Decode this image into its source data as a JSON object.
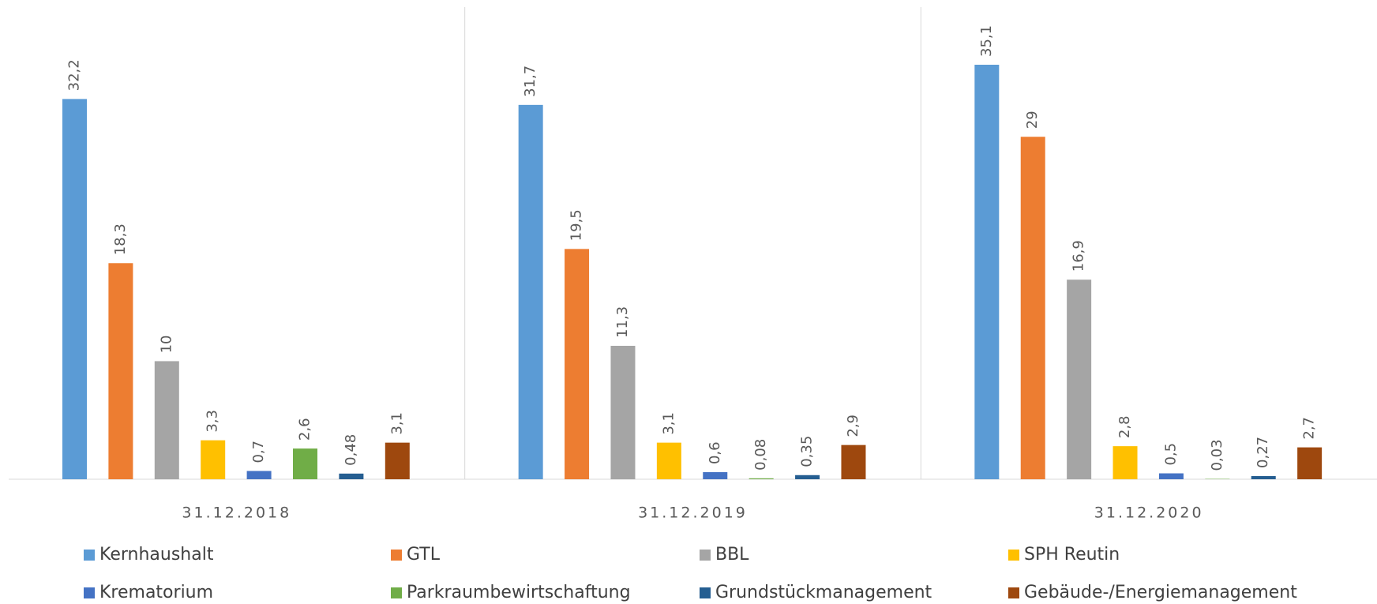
{
  "chart_data": {
    "type": "bar",
    "categories": [
      "31.12.2018",
      "31.12.2019",
      "31.12.2020"
    ],
    "series": [
      {
        "name": "Kernhaushalt",
        "color": "#5b9bd5",
        "values": [
          32.2,
          31.7,
          35.1
        ],
        "value_labels": [
          "32,2",
          "31,7",
          "35,1"
        ]
      },
      {
        "name": "GTL",
        "color": "#ed7d31",
        "values": [
          18.3,
          19.5,
          29
        ],
        "value_labels": [
          "18,3",
          "19,5",
          "29"
        ]
      },
      {
        "name": "BBL",
        "color": "#a5a5a5",
        "values": [
          10,
          11.3,
          16.9
        ],
        "value_labels": [
          "10",
          "11,3",
          "16,9"
        ]
      },
      {
        "name": "SPH Reutin",
        "color": "#ffc000",
        "values": [
          3.3,
          3.1,
          2.8
        ],
        "value_labels": [
          "3,3",
          "3,1",
          "2,8"
        ]
      },
      {
        "name": "Krematorium",
        "color": "#4472c4",
        "values": [
          0.7,
          0.6,
          0.5
        ],
        "value_labels": [
          "0,7",
          "0,6",
          "0,5"
        ]
      },
      {
        "name": "Parkraumbewirtschaftung",
        "color": "#70ad47",
        "values": [
          2.6,
          0.08,
          0.03
        ],
        "value_labels": [
          "2,6",
          "0,08",
          "0,03"
        ]
      },
      {
        "name": "Grundstückmanagement",
        "color": "#255e91",
        "values": [
          0.48,
          0.35,
          0.27
        ],
        "value_labels": [
          "0,48",
          "0,35",
          "0,27"
        ]
      },
      {
        "name": "Gebäude-/Energiemanagement",
        "color": "#9e480e",
        "values": [
          3.1,
          2.9,
          2.7
        ],
        "value_labels": [
          "3,1",
          "2,9",
          "2,7"
        ]
      }
    ],
    "legend": "bottom"
  }
}
